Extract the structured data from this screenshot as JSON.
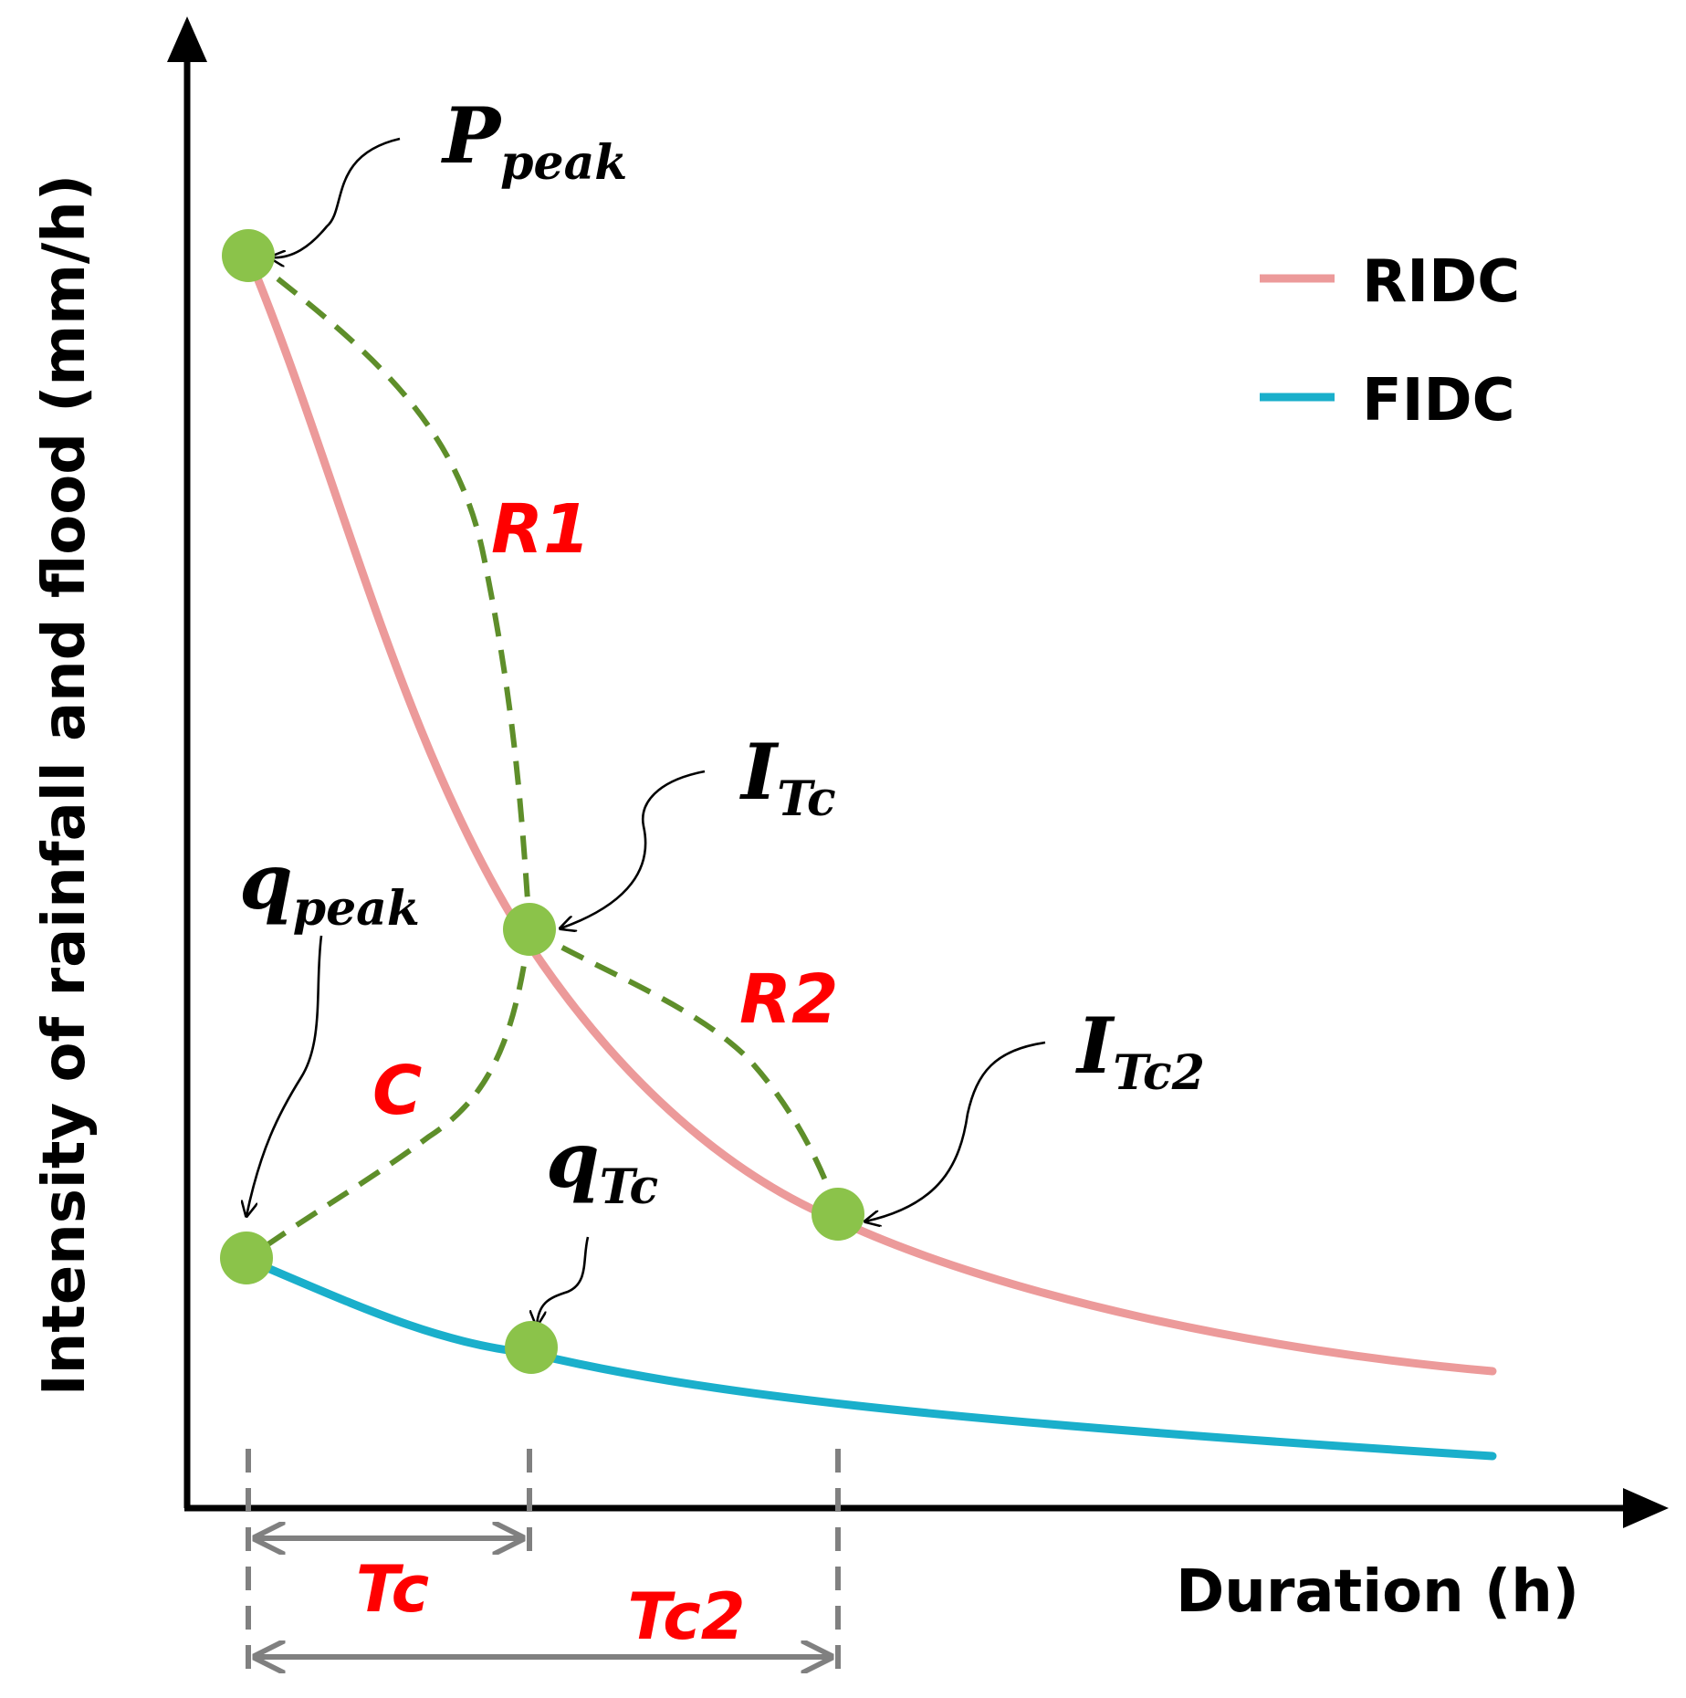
{
  "colors": {
    "ridc": "#EC9A9A",
    "fidc": "#1AAFCB",
    "green_points": "#8BC34A",
    "dashed_green": "#5E8E2A",
    "red_labels": "#FF0000",
    "gray_markers": "#808080"
  },
  "axes": {
    "x_title": "Duration (h)",
    "y_title": "Intensity of rainfall and flood (mm/h)"
  },
  "legend": {
    "items": [
      {
        "key": "ridc",
        "label": "RIDC"
      },
      {
        "key": "fidc",
        "label": "FIDC"
      }
    ]
  },
  "points": {
    "p_peak": {
      "base": "P",
      "sub": "peak"
    },
    "i_tc": {
      "base": "I",
      "sub": "Tc"
    },
    "i_tc2": {
      "base": "I",
      "sub": "Tc2"
    },
    "q_peak": {
      "base": "q",
      "sub": "peak"
    },
    "q_tc": {
      "base": "q",
      "sub": "Tc"
    }
  },
  "relations": {
    "r1": "R1",
    "r2": "R2",
    "c": "C"
  },
  "durations": {
    "tc": "Tc",
    "tc2": "Tc2"
  }
}
